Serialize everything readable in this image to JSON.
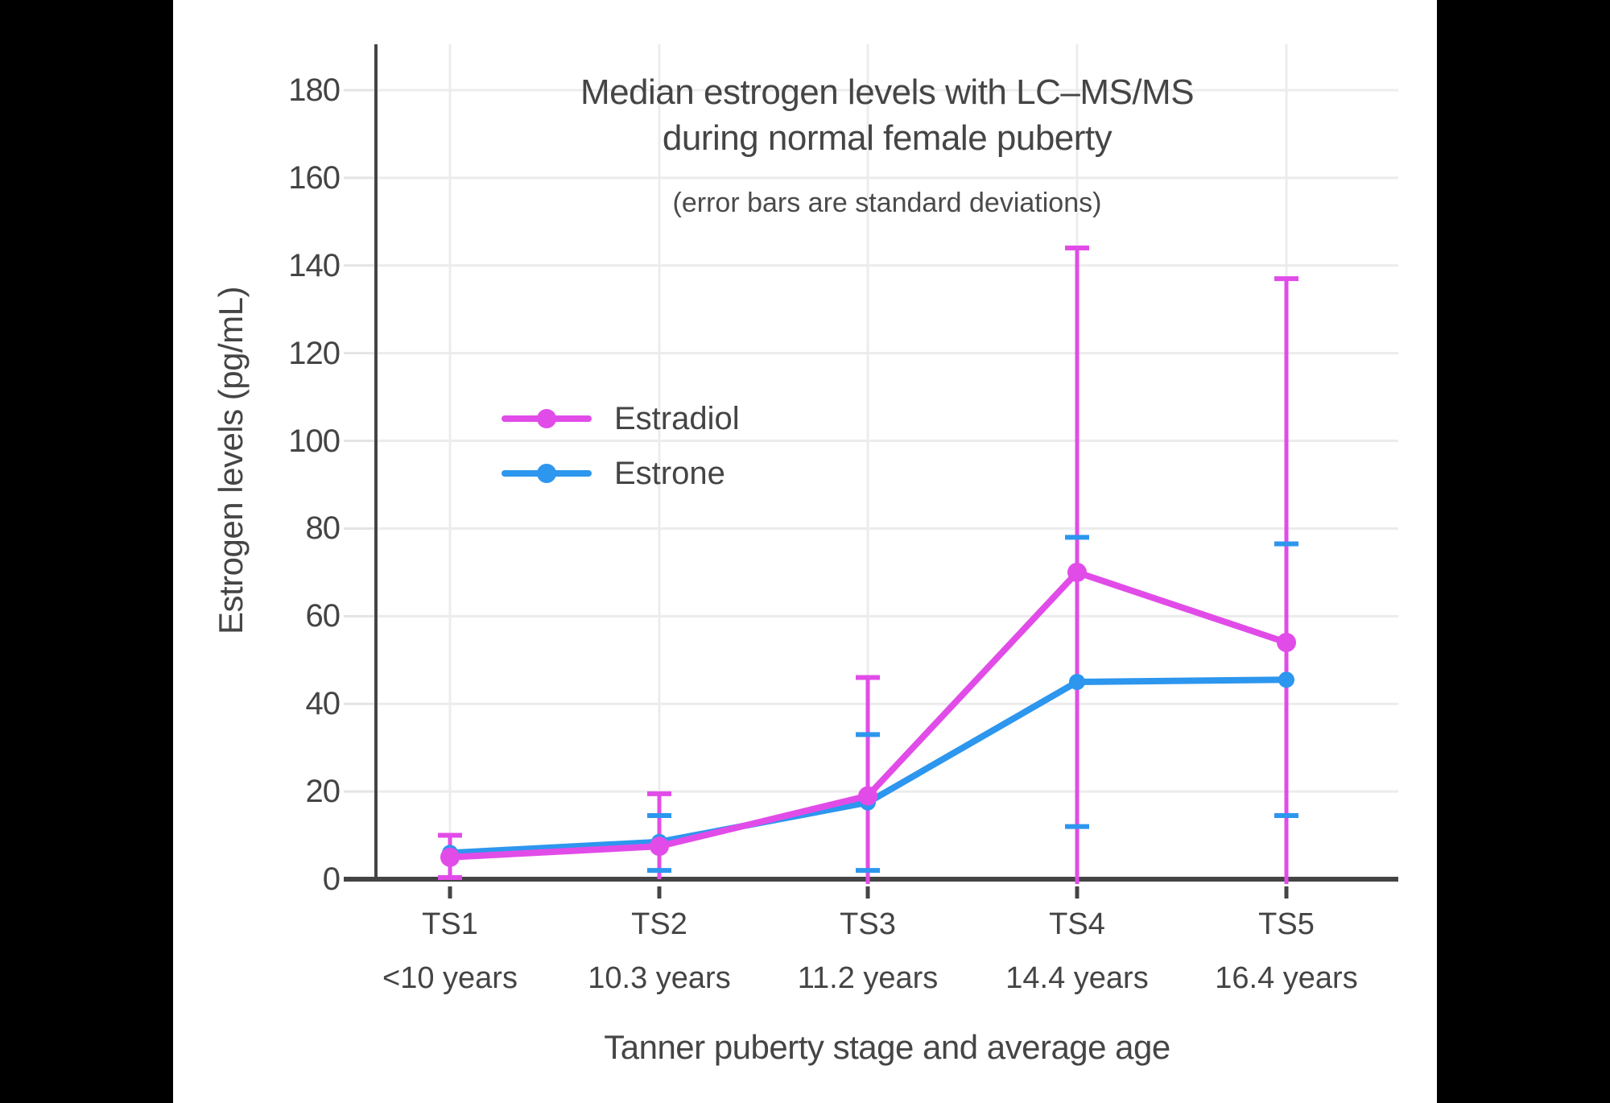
{
  "page": {
    "background_color": "#000000",
    "card_background_color": "#ffffff",
    "text_color": "#454545",
    "gridline_color": "#ececec",
    "axis_color": "#444444"
  },
  "chart_data": {
    "type": "line",
    "title": "Median estrogen levels with LC–MS/MS during normal female puberty",
    "title_line1": "Median estrogen levels with LC–MS/MS",
    "title_line2": "during normal female puberty",
    "subtitle": "(error bars are standard deviations)",
    "xlabel": "Tanner puberty stage and average age",
    "ylabel": "Estrogen levels (pg/mL)",
    "ylim": [
      0,
      190
    ],
    "yticks": [
      0,
      20,
      40,
      60,
      80,
      100,
      120,
      140,
      160,
      180
    ],
    "grid": true,
    "error_bars": "standard deviations",
    "legend_position": "upper-left-inside",
    "categories": [
      "TS1",
      "TS2",
      "TS3",
      "TS4",
      "TS5"
    ],
    "category_ages": [
      "<10 years",
      "10.3 years",
      "11.2 years",
      "14.4 years",
      "16.4 years"
    ],
    "series": [
      {
        "name": "Estradiol",
        "color": "#E14CE8",
        "values": [
          5,
          7.5,
          19,
          70,
          54
        ],
        "sd_high": [
          10,
          19.5,
          46,
          144,
          137
        ],
        "sd_low": [
          0,
          0,
          0,
          0,
          0
        ]
      },
      {
        "name": "Estrone",
        "color": "#2D96EE",
        "values": [
          6,
          8.5,
          17.5,
          45,
          45.5
        ],
        "sd_high": [
          null,
          14.5,
          33,
          78,
          76.5
        ],
        "sd_low": [
          null,
          2,
          2,
          12,
          14.5
        ]
      }
    ]
  }
}
